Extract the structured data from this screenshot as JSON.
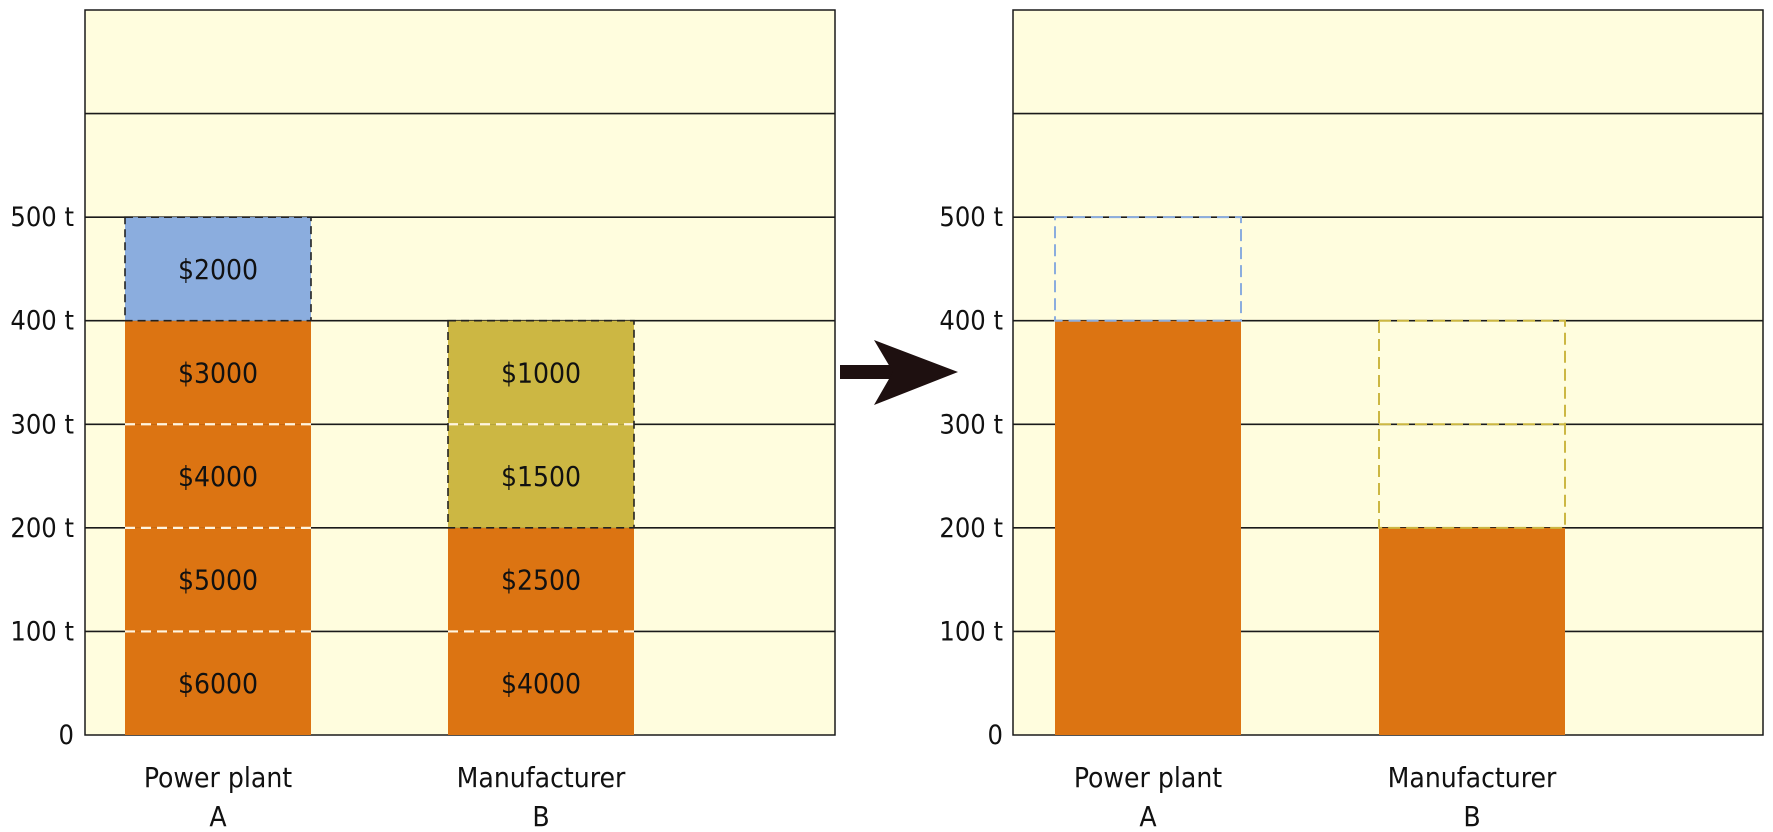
{
  "chart_data": [
    {
      "type": "bar",
      "stacked": true,
      "ylim": [
        0,
        700
      ],
      "yticks": [
        {
          "value": 0,
          "label": "0"
        },
        {
          "value": 100,
          "label": "100 t"
        },
        {
          "value": 200,
          "label": "200 t"
        },
        {
          "value": 300,
          "label": "300 t"
        },
        {
          "value": 400,
          "label": "400 t"
        },
        {
          "value": 500,
          "label": "500 t"
        }
      ],
      "grid": true,
      "categories": [
        {
          "line1": "Power plant",
          "line2": "A"
        },
        {
          "line1": "Manufacturer",
          "line2": "B"
        }
      ],
      "bars": [
        {
          "segments": [
            {
              "from": 0,
              "to": 100,
              "label": "$6000",
              "color": "#dc7412"
            },
            {
              "from": 100,
              "to": 200,
              "label": "$5000",
              "color": "#dc7412"
            },
            {
              "from": 200,
              "to": 300,
              "label": "$4000",
              "color": "#dc7412"
            },
            {
              "from": 300,
              "to": 400,
              "label": "$3000",
              "color": "#dc7412"
            },
            {
              "from": 400,
              "to": 500,
              "label": "$2000",
              "color": "#8badde"
            }
          ]
        },
        {
          "segments": [
            {
              "from": 0,
              "to": 100,
              "label": "$4000",
              "color": "#dc7412"
            },
            {
              "from": 100,
              "to": 200,
              "label": "$2500",
              "color": "#dc7412"
            },
            {
              "from": 200,
              "to": 300,
              "label": "$1500",
              "color": "#ccb743"
            },
            {
              "from": 300,
              "to": 400,
              "label": "$1000",
              "color": "#ccb743"
            }
          ]
        }
      ]
    },
    {
      "type": "bar",
      "stacked": true,
      "ylim": [
        0,
        700
      ],
      "yticks": [
        {
          "value": 0,
          "label": "0"
        },
        {
          "value": 100,
          "label": "100 t"
        },
        {
          "value": 200,
          "label": "200 t"
        },
        {
          "value": 300,
          "label": "300 t"
        },
        {
          "value": 400,
          "label": "400 t"
        },
        {
          "value": 500,
          "label": "500 t"
        }
      ],
      "grid": true,
      "categories": [
        {
          "line1": "Power plant",
          "line2": "A"
        },
        {
          "line1": "Manufacturer",
          "line2": "B"
        }
      ],
      "bars": [
        {
          "value": 400,
          "color": "#dc7412",
          "outline": [
            {
              "from": 400,
              "to": 500,
              "color": "#8badde"
            }
          ]
        },
        {
          "value": 200,
          "color": "#dc7412",
          "outline": [
            {
              "from": 200,
              "to": 400,
              "color": "#ccb743"
            }
          ]
        }
      ]
    }
  ],
  "colors": {
    "plot_background": "#fffdde",
    "gridline": "#1a1a1a",
    "arrow": "#1e1010",
    "segment_divider": "#fff5e0"
  }
}
